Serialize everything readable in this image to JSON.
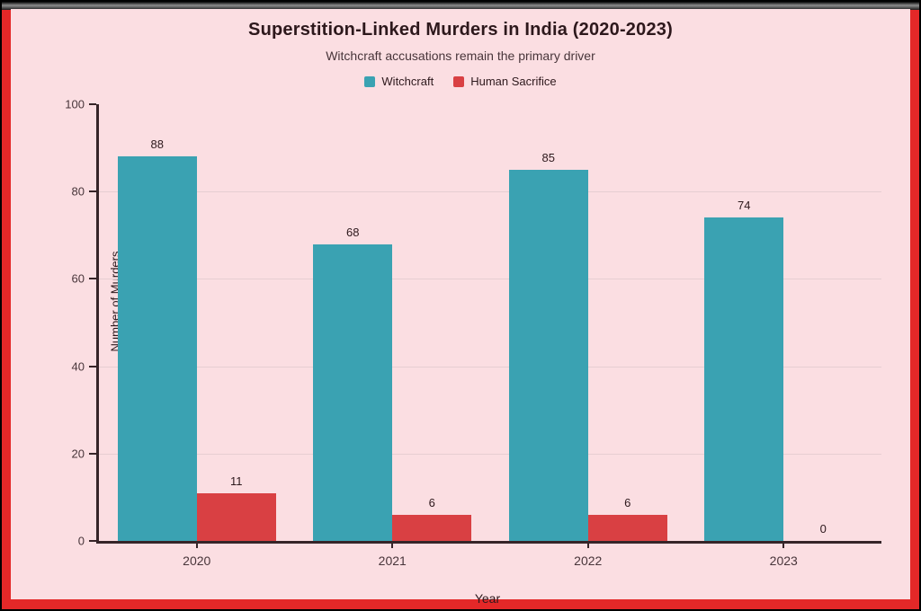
{
  "chart_data": {
    "type": "bar",
    "title": "Superstition-Linked Murders in India (2020-2023)",
    "subtitle": "Witchcraft accusations remain the primary driver",
    "xlabel": "Year",
    "ylabel": "Number of Murders",
    "categories": [
      "2020",
      "2021",
      "2022",
      "2023"
    ],
    "series": [
      {
        "name": "Witchcraft",
        "color": "#3aa2b2",
        "values": [
          88,
          68,
          85,
          74
        ]
      },
      {
        "name": "Human Sacrifice",
        "color": "#d94043",
        "values": [
          11,
          6,
          6,
          0
        ]
      }
    ],
    "ylim": [
      0,
      100
    ],
    "yticks": [
      0,
      20,
      40,
      60,
      80,
      100
    ],
    "grid": "horizontal",
    "legend_position": "top-center",
    "bar_value_labels": true
  },
  "colors": {
    "background": "#fbdee2",
    "frame": "#e42828",
    "title_text": "#2d181c",
    "text": "#48353a",
    "axis": "#362428",
    "grid": "#e6ced2"
  }
}
